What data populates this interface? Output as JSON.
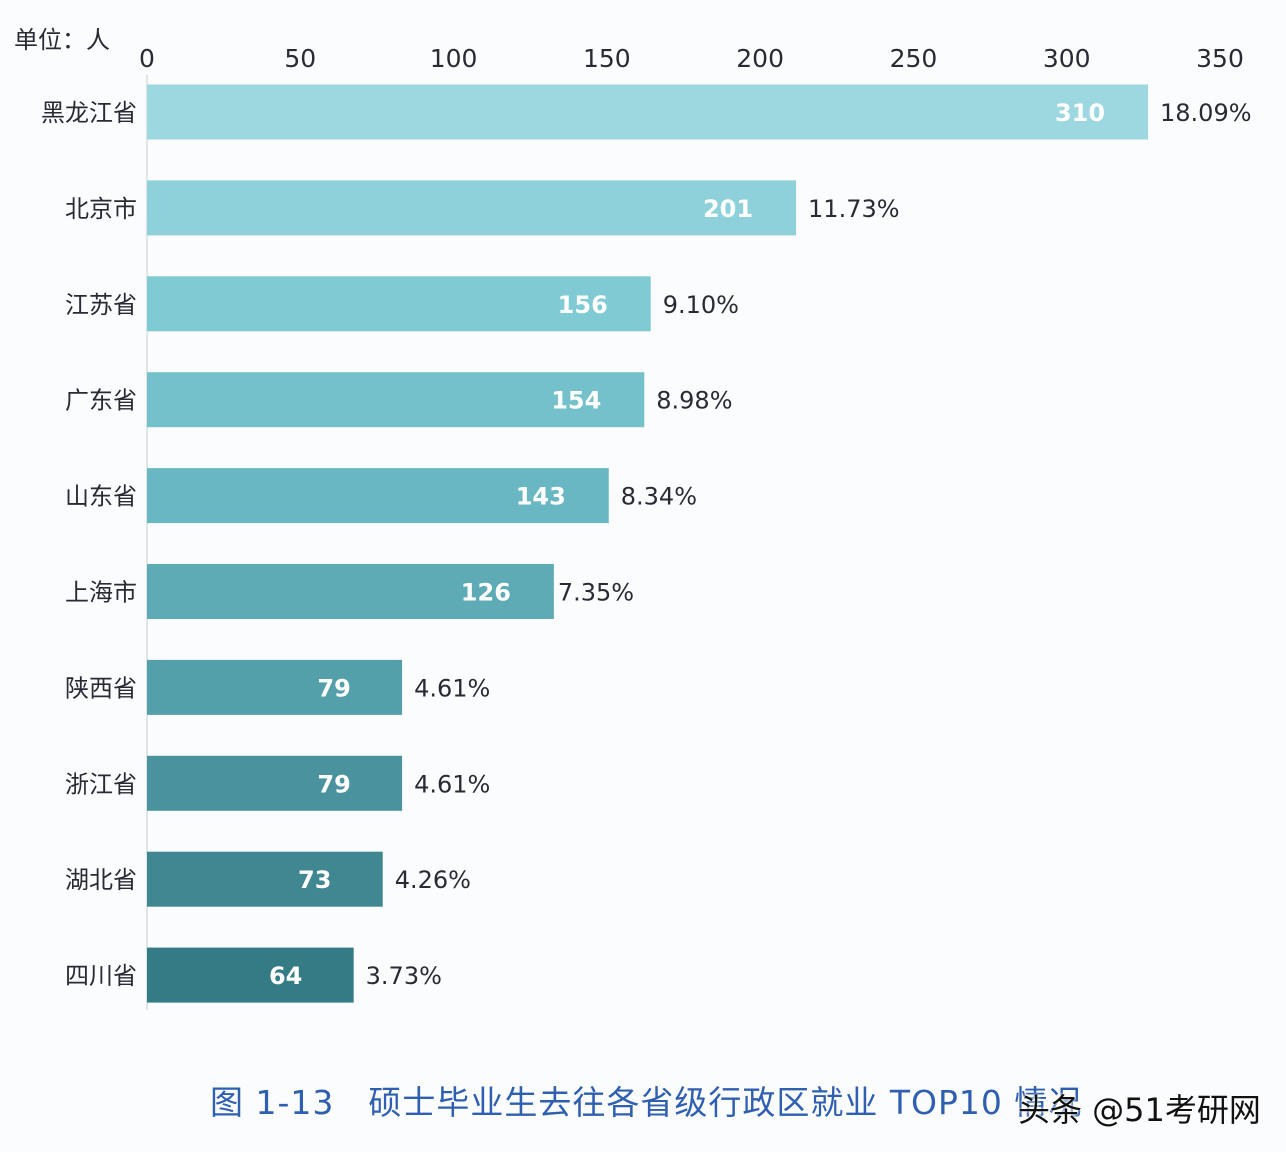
{
  "chart_data": {
    "type": "bar",
    "orientation": "horizontal",
    "unit_label": "单位：人",
    "title": "图 1-13　硕士毕业生去往各省级行政区就业 TOP10 情况",
    "categories": [
      "黑龙江省",
      "北京市",
      "江苏省",
      "广东省",
      "山东省",
      "上海市",
      "陕西省",
      "浙江省",
      "湖北省",
      "四川省"
    ],
    "values": [
      310,
      201,
      156,
      154,
      143,
      126,
      79,
      79,
      73,
      64
    ],
    "percent_labels": [
      "18.09%",
      "11.73%",
      "9.10%",
      "8.98%",
      "8.34%",
      "7.35%",
      "4.61%",
      "4.61%",
      "4.26%",
      "3.73%"
    ],
    "xlim": [
      0,
      350
    ],
    "x_ticks": [
      0,
      50,
      100,
      150,
      200,
      250,
      300,
      350
    ],
    "axis_position": "top",
    "grid": false,
    "legend": "none",
    "colors": [
      "#9dd8e0",
      "#8ed1da",
      "#80cad4",
      "#74c1cc",
      "#69b7c2",
      "#5eabb6",
      "#53a0ab",
      "#4a939e",
      "#418792",
      "#347b85"
    ]
  },
  "watermark": "头条 @51考研网"
}
